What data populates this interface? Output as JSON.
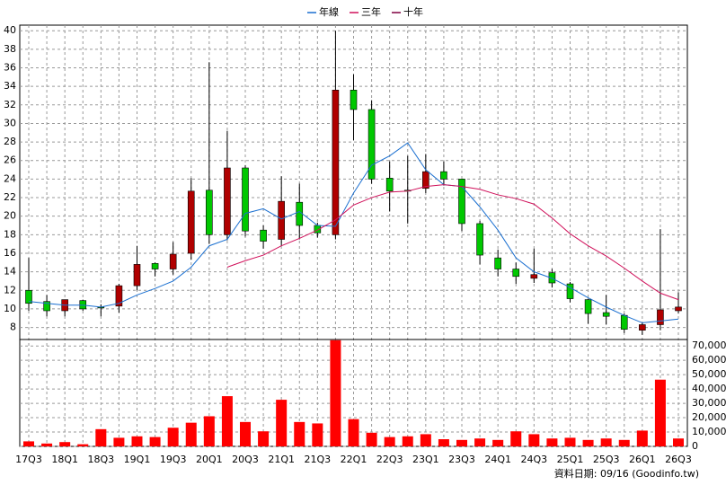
{
  "chart_data": {
    "type": "candlestick",
    "categories": [
      "17Q3",
      null,
      "18Q1",
      null,
      "18Q3",
      null,
      "19Q1",
      null,
      "19Q3",
      null,
      "20Q1",
      null,
      "20Q3",
      null,
      "21Q1",
      null,
      "21Q3",
      null,
      "22Q1",
      null,
      "22Q3",
      null,
      "23Q1",
      null,
      "23Q3",
      null,
      "24Q1",
      null,
      "24Q3",
      null,
      "25Q1",
      null,
      "25Q3",
      null,
      "26Q1",
      null,
      "26Q3"
    ],
    "ohlc": {
      "open": [
        12,
        10.8,
        9.8,
        10.9,
        10.2,
        10.3,
        12.5,
        14.9,
        14.3,
        16,
        22.8,
        18,
        25.2,
        18.5,
        17.5,
        21.5,
        19,
        18,
        33.6,
        31.5,
        24.1,
        22.8,
        23,
        24.8,
        24,
        19.2,
        15.5,
        14.3,
        13.3,
        13.9,
        12.7,
        11,
        9.6,
        9.3,
        7.7,
        8.3,
        9.8
      ],
      "high": [
        15.5,
        11.5,
        11,
        11,
        10.5,
        12.7,
        16.8,
        15,
        17.2,
        24.1,
        36.6,
        29.2,
        25.5,
        19,
        24.3,
        23.5,
        19.3,
        40,
        35.3,
        32.5,
        25.9,
        26.5,
        26.7,
        25.9,
        24,
        19.5,
        16.4,
        15,
        16.5,
        14.3,
        12.9,
        11.1,
        11.5,
        9.5,
        8.5,
        18.6,
        11.8
      ],
      "low": [
        9.8,
        9.2,
        9.2,
        9.8,
        9.2,
        9.6,
        12,
        13.5,
        13.7,
        15.3,
        17,
        17.4,
        17.8,
        16.5,
        16.8,
        17.5,
        17.7,
        17.5,
        28.2,
        23.5,
        20.5,
        19.2,
        22.5,
        23.3,
        18.4,
        14.8,
        13.5,
        12.7,
        12.8,
        12.3,
        10.7,
        8.4,
        8.3,
        7.4,
        7.2,
        7.7,
        9.5
      ],
      "close": [
        10.6,
        9.8,
        11,
        10,
        10.1,
        12.5,
        14.8,
        14.3,
        15.9,
        22.7,
        18,
        25.2,
        18.4,
        17.3,
        21.6,
        19,
        18.2,
        33.6,
        31.5,
        24,
        22.7,
        22.7,
        24.8,
        24,
        19.2,
        15.8,
        14.3,
        13.5,
        13.7,
        12.8,
        11.1,
        9.5,
        9.2,
        7.8,
        8.3,
        9.9,
        10.2
      ]
    },
    "up_color": "#b00000",
    "down_color": "#00c800",
    "series": [
      {
        "name": "年線",
        "color": "#1a6fd0",
        "values": [
          10.8,
          10.6,
          10.4,
          10.4,
          10.2,
          10.6,
          11.5,
          12.2,
          13,
          14.5,
          16.8,
          17.5,
          20.3,
          20.8,
          19.7,
          20.5,
          19,
          18.9,
          22.5,
          25.5,
          26.5,
          27.9,
          25,
          23.4,
          23.2,
          21,
          18.5,
          15.5,
          14,
          13.3,
          12.3,
          11.2,
          10.2,
          9.3,
          8.5,
          8.7,
          8.9
        ]
      },
      {
        "name": "三年",
        "color": "#d0105a",
        "values": [
          null,
          null,
          null,
          null,
          null,
          null,
          null,
          null,
          null,
          null,
          null,
          14.5,
          15.2,
          15.8,
          16.8,
          17.6,
          18.5,
          19.6,
          21.2,
          22,
          22.6,
          22.7,
          23.2,
          23.4,
          23.2,
          22.9,
          22.3,
          21.9,
          21.3,
          19.8,
          18.1,
          16.8,
          15.7,
          14.4,
          13,
          11.7,
          11
        ]
      },
      {
        "name": "十年",
        "color": "#800040",
        "values": [
          null,
          null,
          null,
          null,
          null,
          null,
          null,
          null,
          null,
          null,
          null,
          null,
          null,
          null,
          null,
          null,
          null,
          null,
          null,
          null,
          null,
          null,
          null,
          null,
          null,
          null,
          null,
          null,
          null,
          null,
          null,
          null,
          null,
          null,
          null,
          null,
          null
        ]
      }
    ],
    "volume": {
      "color": "#ff0000",
      "values": [
        3500,
        2000,
        3000,
        1500,
        12000,
        6000,
        7000,
        6500,
        13000,
        16500,
        21000,
        35000,
        17000,
        10500,
        32500,
        17000,
        16000,
        74000,
        19000,
        9500,
        6500,
        7000,
        8500,
        5000,
        4500,
        5500,
        4500,
        10500,
        8500,
        5500,
        6000,
        4500,
        5500,
        4500,
        11000,
        46500,
        5500
      ]
    },
    "ylim": [
      6.7,
      40.6
    ],
    "yticks": [
      8,
      10,
      12,
      14,
      16,
      18,
      20,
      22,
      24,
      26,
      28,
      30,
      32,
      34,
      36,
      38,
      40
    ],
    "y2lim": [
      0,
      74500
    ],
    "y2ticks": [
      0,
      {
        "value": 10000,
        "label": "10,000"
      },
      {
        "value": 20000,
        "label": "20,000"
      },
      {
        "value": 30000,
        "label": "30,000"
      },
      {
        "value": 40000,
        "label": "40,000"
      },
      {
        "value": 50000,
        "label": "50,000"
      },
      {
        "value": 60000,
        "label": "60,000"
      },
      {
        "value": 70000,
        "label": "70,000"
      }
    ],
    "grid": true,
    "footer": "資料日期: 09/16 (Goodinfo.tw)"
  }
}
